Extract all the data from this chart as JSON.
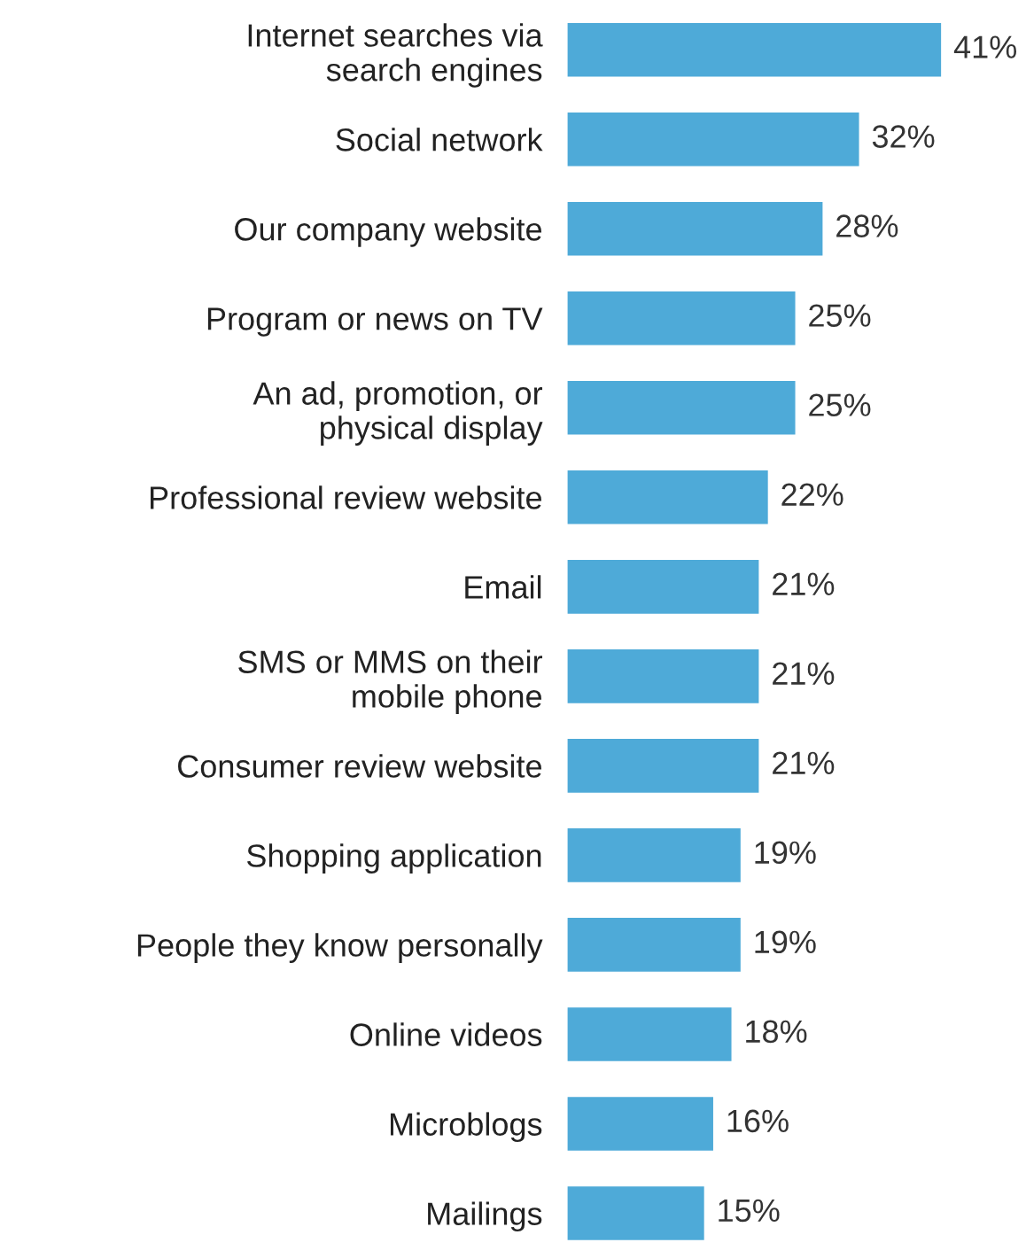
{
  "chart_data": {
    "type": "bar",
    "orientation": "horizontal",
    "categories": [
      "Internet searches via\nsearch engines",
      "Social network",
      "Our company website",
      "Program or news on TV",
      "An ad, promotion, or\nphysical display",
      "Professional review website",
      "Email",
      "SMS or MMS on their\nmobile phone",
      "Consumer review website",
      "Shopping application",
      "People they know personally",
      "Online videos",
      "Microblogs",
      "Mailings"
    ],
    "values": [
      41,
      32,
      28,
      25,
      25,
      22,
      21,
      21,
      21,
      19,
      19,
      18,
      16,
      15
    ],
    "value_labels": [
      "41%",
      "32%",
      "28%",
      "25%",
      "25%",
      "22%",
      "21%",
      "21%",
      "21%",
      "19%",
      "19%",
      "18%",
      "16%",
      "15%"
    ],
    "color": "#4eaad8",
    "tick_labels": "y",
    "grid": false,
    "legend": false
  }
}
